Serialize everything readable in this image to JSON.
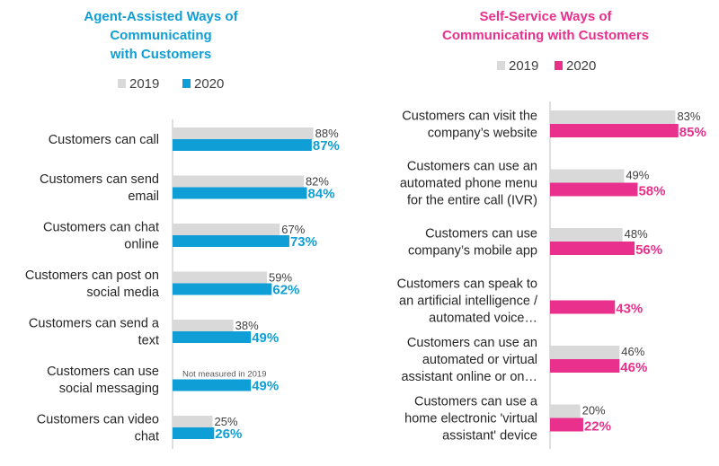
{
  "chart_data": [
    {
      "type": "bar",
      "orientation": "horizontal",
      "title": "Agent-Assisted Ways of Communicating with Customers",
      "title_lines": [
        "Agent-Assisted Ways of",
        "Communicating",
        "with Customers"
      ],
      "legend": [
        "2019",
        "2020"
      ],
      "legend_placement": "top",
      "xlim": [
        0,
        100
      ],
      "colors": {
        "2019": "#d9d9d9",
        "2020": "#0f9ed5",
        "accent": "#0f9ed5"
      },
      "categories": [
        [
          "Customers can call"
        ],
        [
          "Customers can send",
          "email"
        ],
        [
          "Customers can chat",
          "online"
        ],
        [
          "Customers can post on",
          "social media"
        ],
        [
          "Customers can send a",
          "text"
        ],
        [
          "Customers can use",
          "social messaging"
        ],
        [
          "Customers can video",
          "chat"
        ]
      ],
      "series": [
        {
          "name": "2019",
          "values": [
            88,
            82,
            67,
            59,
            38,
            null,
            25
          ],
          "labels": [
            "88%",
            "82%",
            "67%",
            "59%",
            "38%",
            "Not measured in 2019",
            "25%"
          ]
        },
        {
          "name": "2020",
          "values": [
            87,
            84,
            73,
            62,
            49,
            49,
            26
          ],
          "labels": [
            "87%",
            "84%",
            "73%",
            "62%",
            "49%",
            "49%",
            "26%"
          ]
        }
      ]
    },
    {
      "type": "bar",
      "orientation": "horizontal",
      "title": "Self-Service Ways of Communicating with Customers",
      "title_lines": [
        "Self-Service Ways of",
        "Communicating with Customers"
      ],
      "legend": [
        "2019",
        "2020"
      ],
      "legend_placement": "top",
      "xlim": [
        0,
        100
      ],
      "colors": {
        "2019": "#d9d9d9",
        "2020": "#e8308c",
        "accent": "#e8308c"
      },
      "categories": [
        [
          "Customers can visit the",
          "company’s website"
        ],
        [
          "Customers can use an",
          "automated phone menu",
          "for the entire call (IVR)"
        ],
        [
          "Customers can use",
          "company’s mobile app"
        ],
        [
          "Customers can speak to",
          "an artificial intelligence /",
          "automated voice…"
        ],
        [
          "Customers can use an",
          "automated or virtual",
          "assistant online or on…"
        ],
        [
          "Customers can use a",
          "home electronic 'virtual",
          "assistant' device"
        ]
      ],
      "series": [
        {
          "name": "2019",
          "values": [
            83,
            49,
            48,
            null,
            46,
            20
          ],
          "labels": [
            "83%",
            "49%",
            "48%",
            "",
            "46%",
            "20%"
          ]
        },
        {
          "name": "2020",
          "values": [
            85,
            58,
            56,
            43,
            46,
            22
          ],
          "labels": [
            "85%",
            "58%",
            "56%",
            "43%",
            "46%",
            "22%"
          ]
        }
      ]
    }
  ]
}
